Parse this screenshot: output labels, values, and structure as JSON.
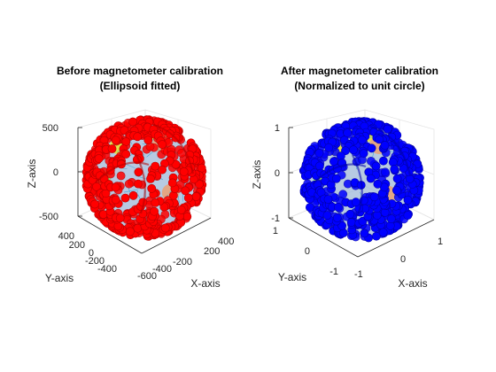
{
  "chart_data": [
    {
      "type": "scatter3d",
      "title": "Before magnetometer calibration",
      "subtitle": "(Ellipsoid fitted)",
      "xlabel": "X-axis",
      "ylabel": "Y-axis",
      "zlabel": "Z-axis",
      "xlim": [
        -700,
        500
      ],
      "ylim": [
        -600,
        500
      ],
      "zlim": [
        -550,
        550
      ],
      "xticks": [
        "-600",
        "-400",
        "-200",
        "200",
        "400"
      ],
      "yticks": [
        "-400",
        "-200",
        "0",
        "200",
        "400"
      ],
      "zticks": [
        "-500",
        "0",
        "500"
      ],
      "marker_color": "#ff0000",
      "marker_edge_color": "#b30000",
      "fit_surface": "ellipsoid",
      "center": [
        -150,
        -150,
        0
      ],
      "radius": 450,
      "point_count": 600
    },
    {
      "type": "scatter3d",
      "title": "After magnetometer calibration",
      "subtitle": "(Normalized to unit circle)",
      "xlabel": "X-axis",
      "ylabel": "Y-axis",
      "zlabel": "Z-axis",
      "xlim": [
        -1.2,
        1.2
      ],
      "ylim": [
        -1.2,
        1.2
      ],
      "zlim": [
        -1.05,
        1.05
      ],
      "xticks": [
        "-1",
        "0",
        "1"
      ],
      "yticks": [
        "-1",
        "0",
        "1"
      ],
      "zticks": [
        "-1",
        "0",
        "1"
      ],
      "marker_color": "#0000ff",
      "marker_edge_color": "#0000a8",
      "fit_surface": "unit-sphere",
      "center": [
        0,
        0,
        0
      ],
      "radius": 1,
      "point_count": 600
    }
  ],
  "colors": {
    "mesh_line": "#2ba3d9",
    "mesh_fill": "#9fb8d8",
    "patch_yellow": "#e8e23a",
    "patch_green": "#8ede5a",
    "patch_orange": "#e8a27a"
  }
}
